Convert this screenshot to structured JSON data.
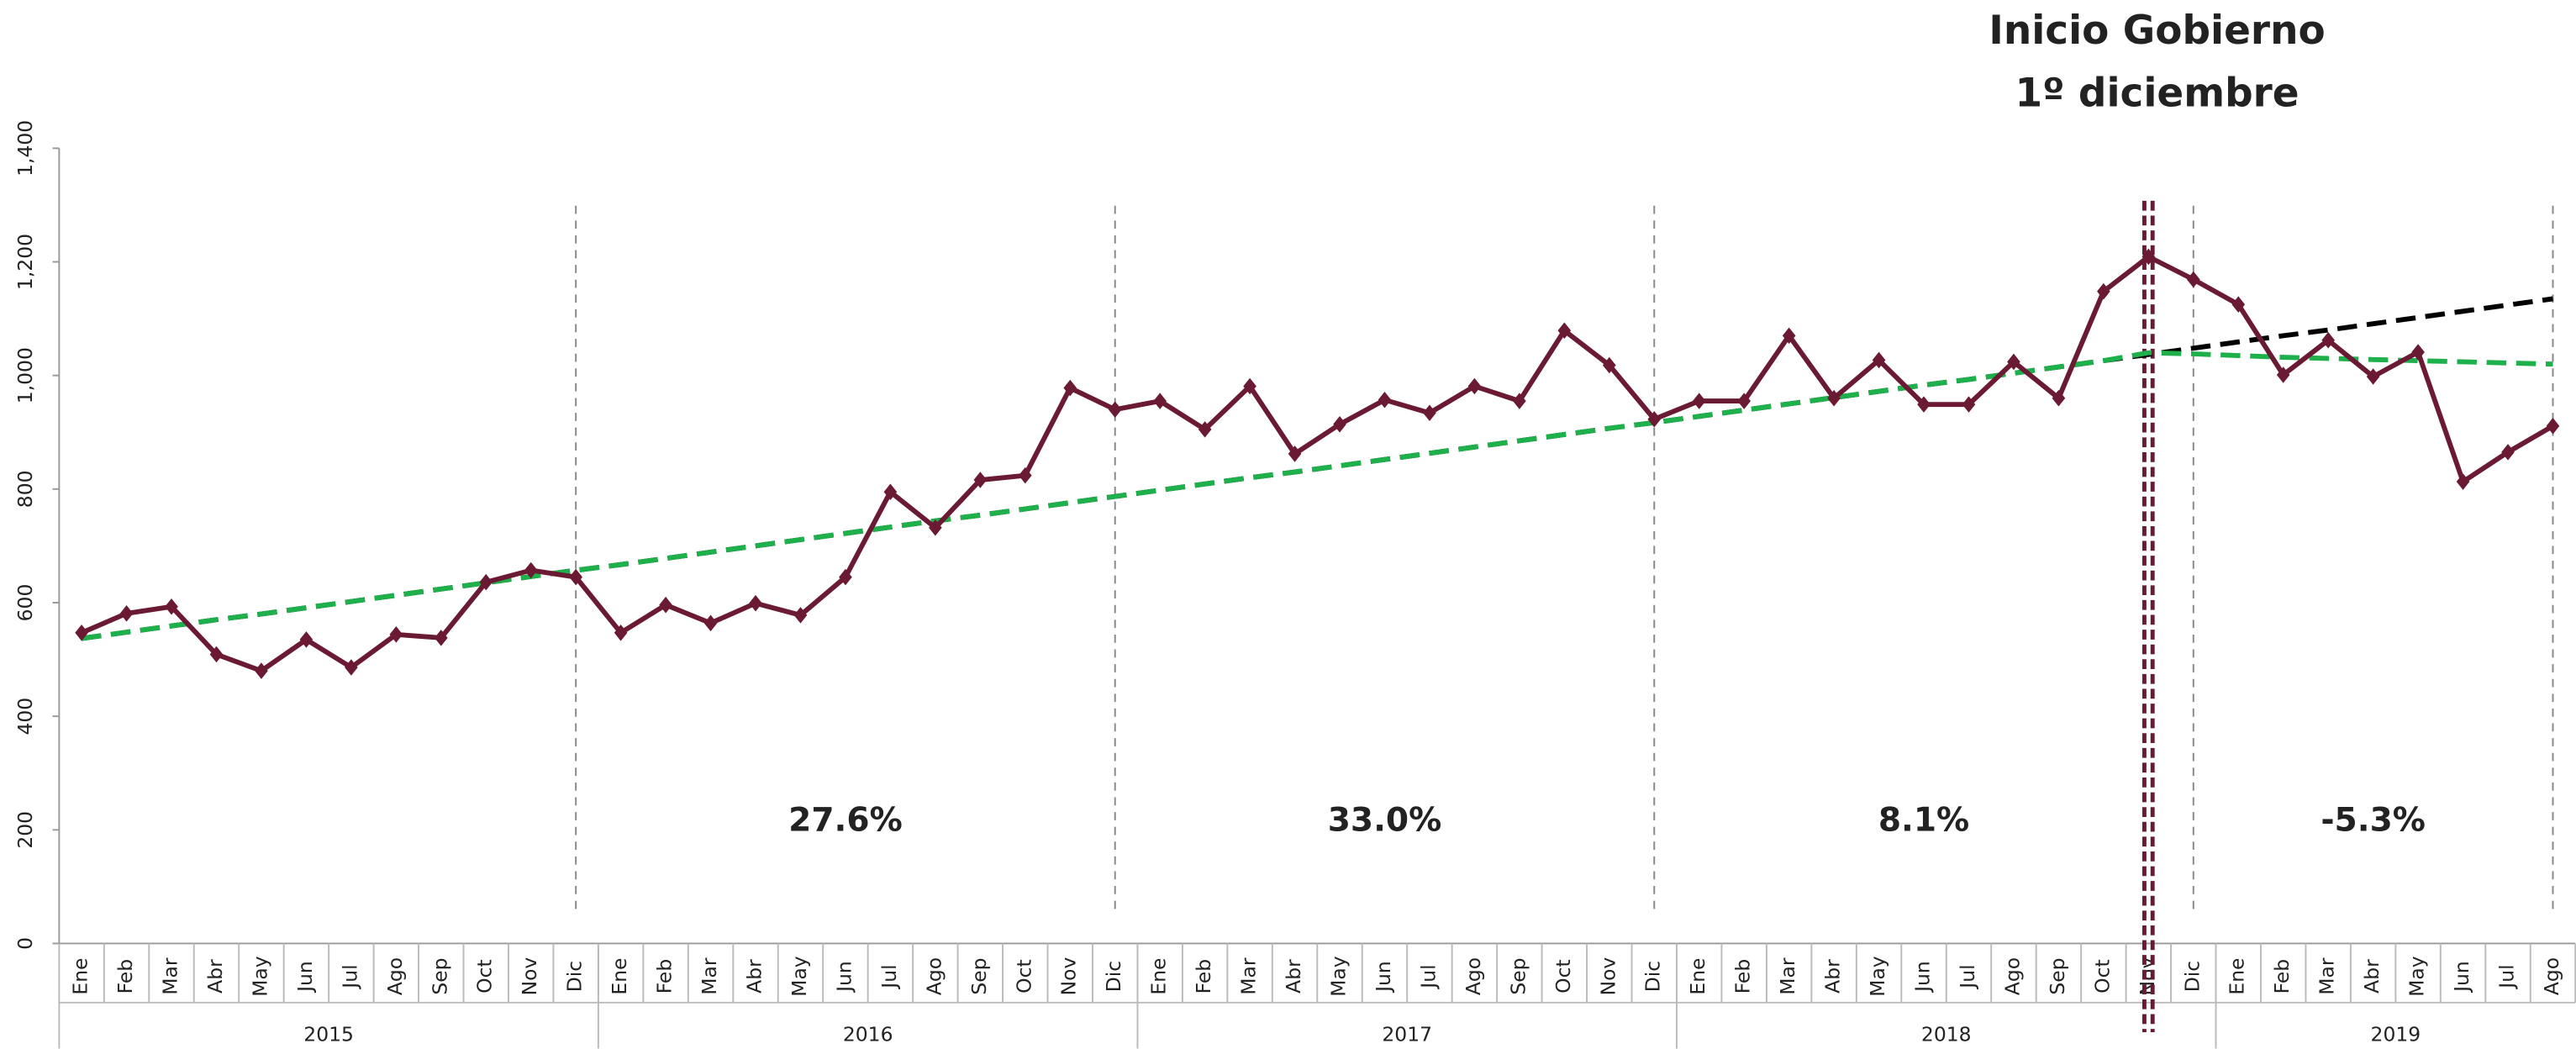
{
  "chart_data": {
    "type": "line",
    "annotation": [
      "Inicio Gobierno",
      "1º diciembre"
    ],
    "categories": [
      "Ene",
      "Feb",
      "Mar",
      "Abr",
      "May",
      "Jun",
      "Jul",
      "Ago",
      "Sep",
      "Oct",
      "Nov",
      "Dic",
      "Ene",
      "Feb",
      "Mar",
      "Abr",
      "May",
      "Jun",
      "Jul",
      "Ago",
      "Sep",
      "Oct",
      "Nov",
      "Dic",
      "Ene",
      "Feb",
      "Mar",
      "Abr",
      "May",
      "Jun",
      "Jul",
      "Ago",
      "Sep",
      "Oct",
      "Nov",
      "Dic",
      "Ene",
      "Feb",
      "Mar",
      "Abr",
      "May",
      "Jun",
      "Jul",
      "Ago",
      "Sep",
      "Oct",
      "Nov",
      "Dic",
      "Ene",
      "Feb",
      "Mar",
      "Abr",
      "May",
      "Jun",
      "Jul",
      "Ago"
    ],
    "years": [
      "2015",
      "2016",
      "2017",
      "2018",
      "2019"
    ],
    "period_labels": [
      "27.6%",
      "33.0%",
      "8.1%",
      "-5.3%"
    ],
    "series": [
      {
        "color": "#000000",
        "style": "dashed",
        "values": [
          537,
          548,
          559,
          570,
          580,
          591,
          602,
          613,
          624,
          635,
          646,
          657,
          667,
          678,
          689,
          700,
          711,
          722,
          733,
          744,
          754,
          765,
          776,
          787,
          798,
          809,
          820,
          830,
          841,
          852,
          863,
          874,
          885,
          896,
          907,
          917,
          928,
          939,
          950,
          961,
          972,
          983,
          993,
          1004,
          1015,
          1026,
          1037,
          1048,
          1059,
          1070,
          1080,
          1091,
          1102,
          1113,
          1124,
          1135
        ]
      },
      {
        "color": "#1eb04b",
        "style": "dashed",
        "values": [
          537,
          548,
          559,
          570,
          580,
          591,
          602,
          613,
          624,
          635,
          646,
          657,
          667,
          678,
          689,
          700,
          711,
          722,
          733,
          744,
          754,
          765,
          776,
          787,
          798,
          809,
          820,
          830,
          841,
          852,
          863,
          874,
          885,
          896,
          907,
          917,
          928,
          939,
          950,
          961,
          972,
          983,
          993,
          1004,
          1015,
          1026,
          1040,
          1038,
          1035,
          1032,
          1030,
          1028,
          1026,
          1024,
          1022,
          1020
        ]
      },
      {
        "color": "#6b1a33",
        "style": "solid",
        "markers": true,
        "values": [
          547,
          581,
          593,
          509,
          480,
          535,
          486,
          544,
          538,
          636,
          657,
          645,
          547,
          596,
          564,
          599,
          578,
          645,
          795,
          732,
          816,
          824,
          978,
          940,
          955,
          905,
          981,
          862,
          914,
          957,
          934,
          981,
          955,
          1079,
          1018,
          923,
          955,
          955,
          1070,
          960,
          1027,
          949,
          949,
          1024,
          960,
          1148,
          1209,
          1169,
          1125,
          1001,
          1062,
          998,
          1041,
          813,
          865,
          911
        ]
      }
    ],
    "ylim": [
      0,
      1400
    ],
    "yticks": [
      0,
      200,
      400,
      600,
      800,
      {
        "value": 1000,
        "label": "1,000"
      },
      {
        "value": 1200,
        "label": "1,200"
      },
      {
        "value": 1400,
        "label": "1,400"
      }
    ]
  }
}
